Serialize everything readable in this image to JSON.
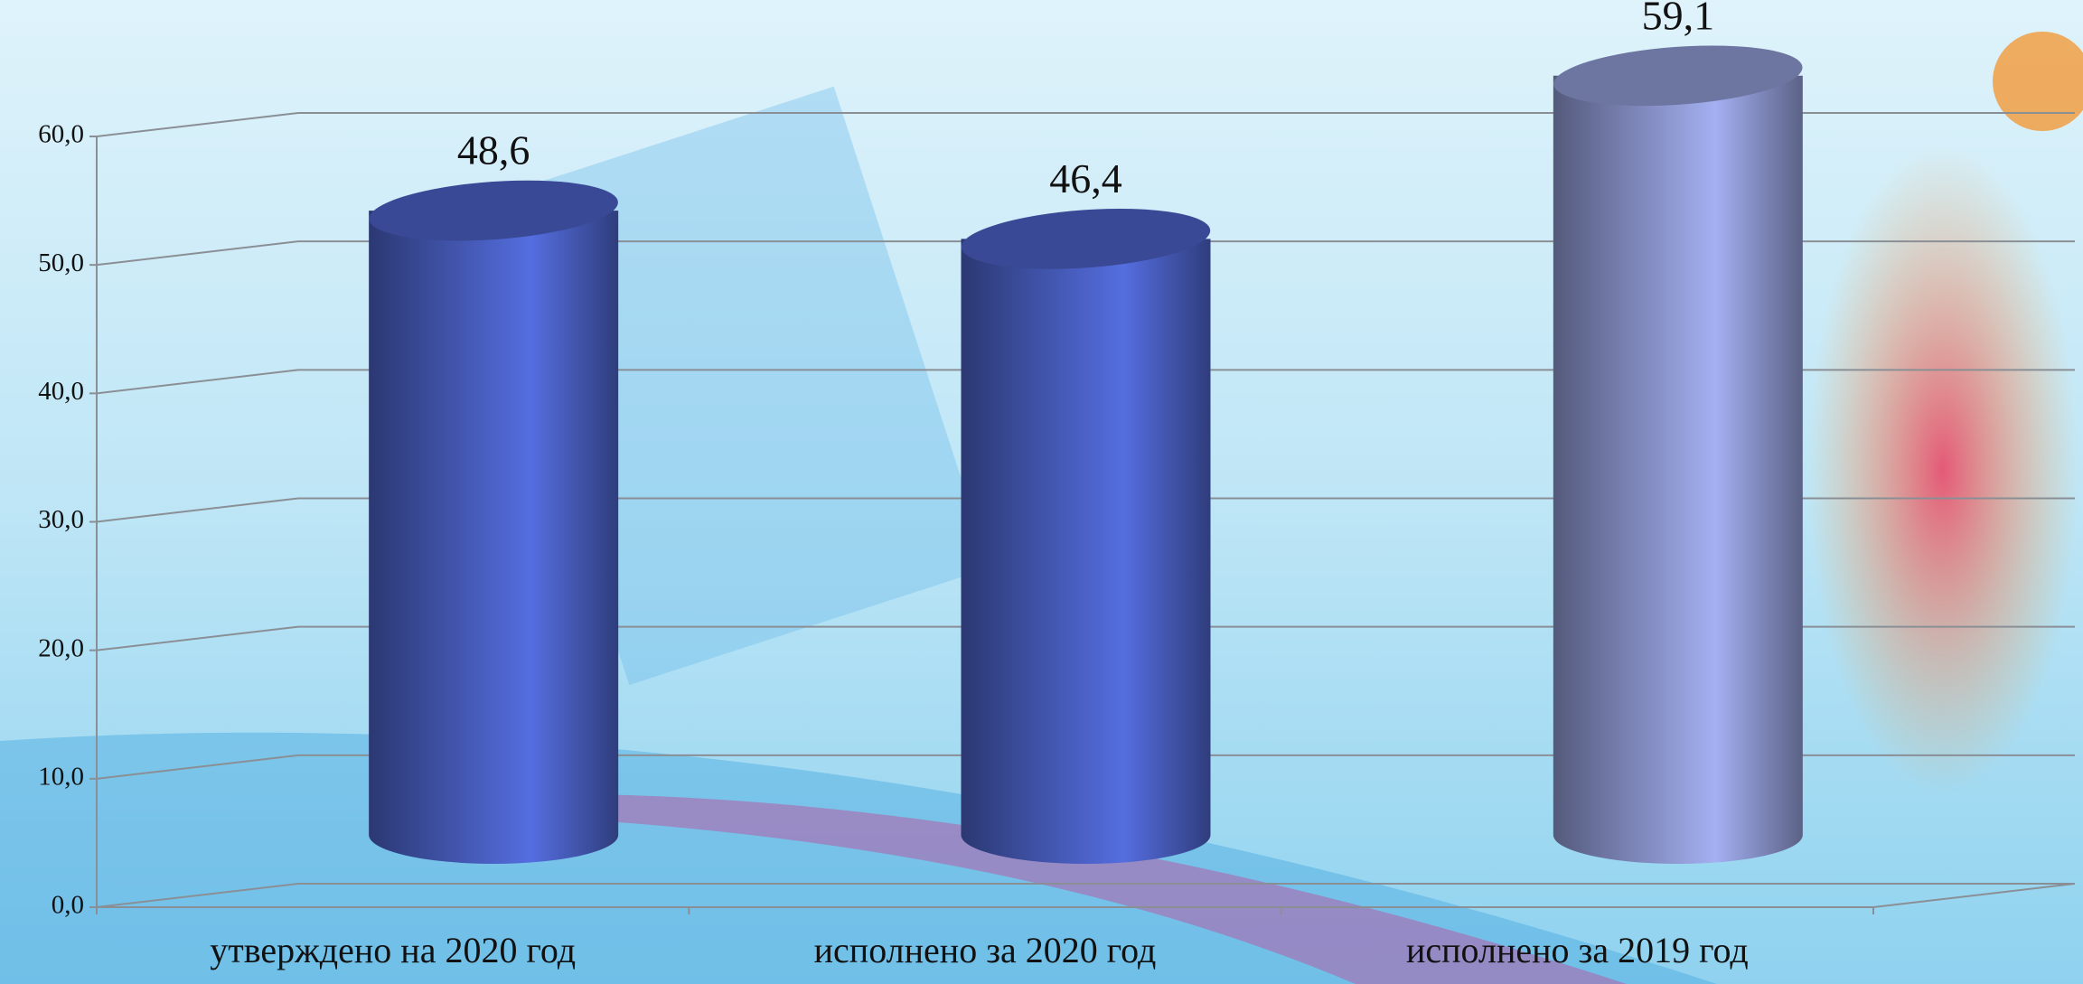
{
  "chart_data": {
    "type": "bar",
    "categories": [
      "утверждено на 2020 год",
      "исполнено за 2020 год",
      "исполнено за 2019 год"
    ],
    "values": [
      48.6,
      46.4,
      59.1
    ],
    "value_labels": [
      "48,6",
      "46,4",
      "59,1"
    ],
    "colors": [
      "#4f66cf",
      "#4f66cf",
      "#98a3e0"
    ],
    "ylim": [
      0,
      60
    ],
    "yticks": [
      {
        "value": 0,
        "label": "0,0"
      },
      {
        "value": 10,
        "label": "10,0"
      },
      {
        "value": 20,
        "label": "20,0"
      },
      {
        "value": 30,
        "label": "30,0"
      },
      {
        "value": 40,
        "label": "40,0"
      },
      {
        "value": 50,
        "label": "50,0"
      },
      {
        "value": 60,
        "label": "60,0"
      }
    ],
    "grid": true
  }
}
